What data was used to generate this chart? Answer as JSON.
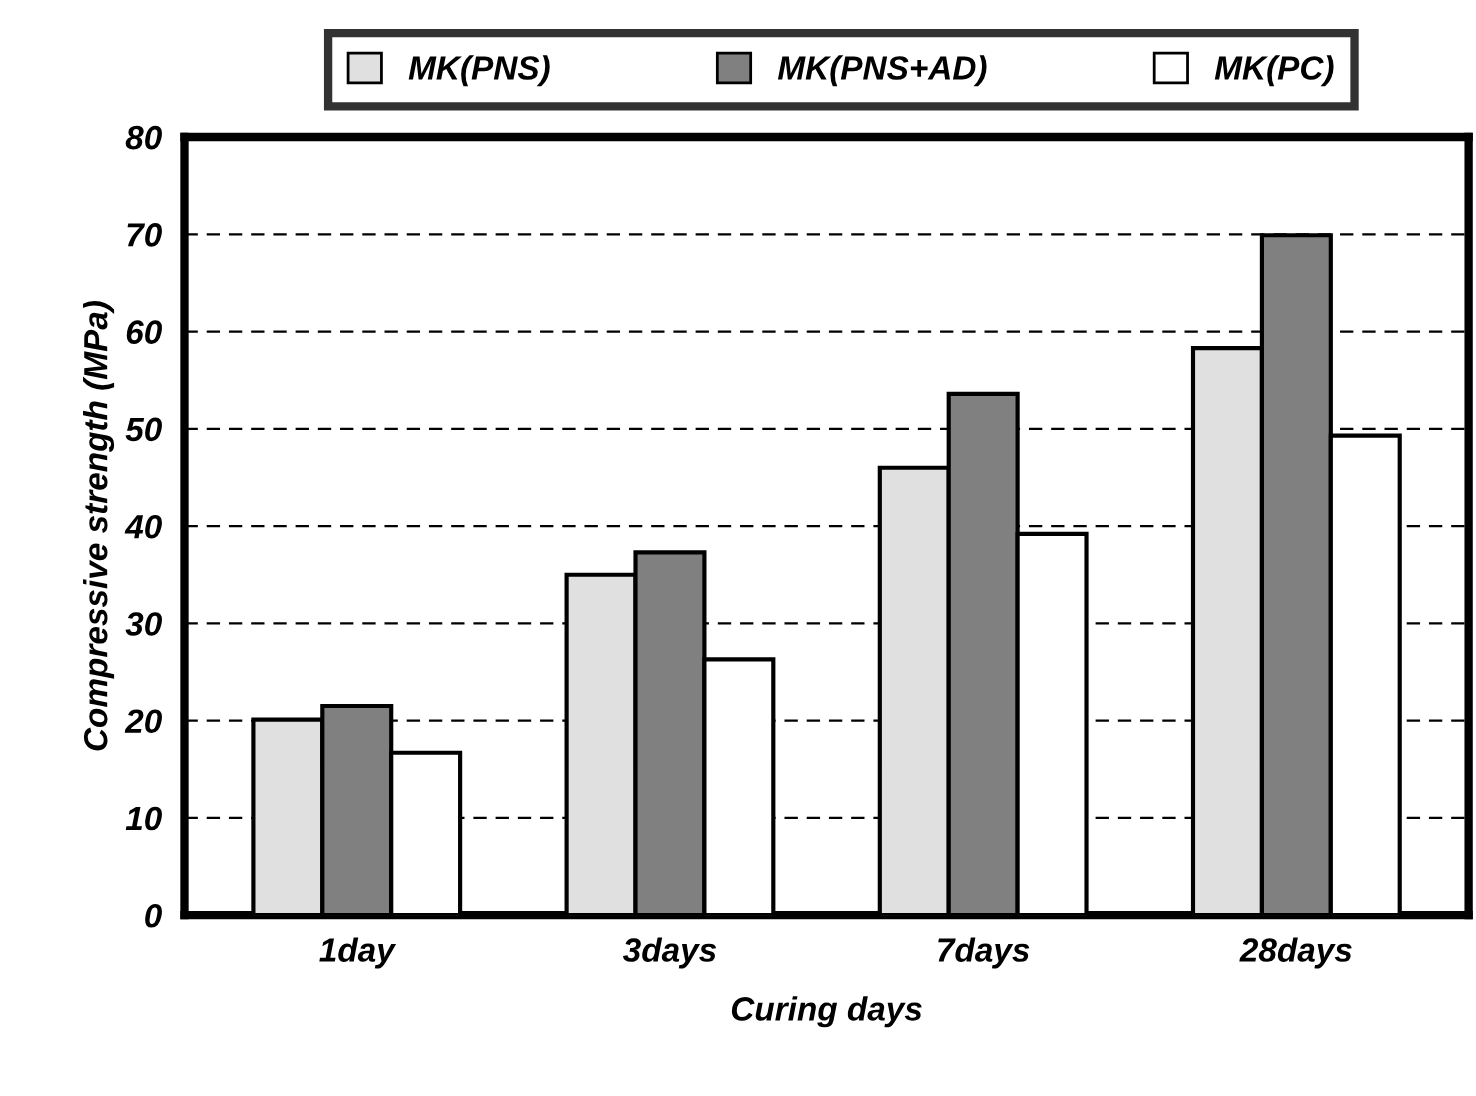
{
  "chart_data": {
    "type": "bar",
    "xlabel": "Curing days",
    "ylabel": "Compressive strength (MPa)",
    "categories": [
      "1day",
      "3days",
      "7days",
      "28days"
    ],
    "series": [
      {
        "name": "MK(PNS)",
        "color": "#e0e0e0",
        "values": [
          20.1,
          35.0,
          46.0,
          58.3
        ]
      },
      {
        "name": "MK(PNS+AD)",
        "color": "#808080",
        "values": [
          21.5,
          37.3,
          53.6,
          69.9
        ]
      },
      {
        "name": "MK(PC)",
        "color": "#ffffff",
        "values": [
          16.7,
          26.3,
          39.2,
          49.3
        ]
      }
    ],
    "ylim": [
      0,
      80
    ],
    "yticks": [
      0,
      10,
      20,
      30,
      40,
      50,
      60,
      70,
      80
    ],
    "grid": "y",
    "legend": "top",
    "line_style": "dashed"
  }
}
